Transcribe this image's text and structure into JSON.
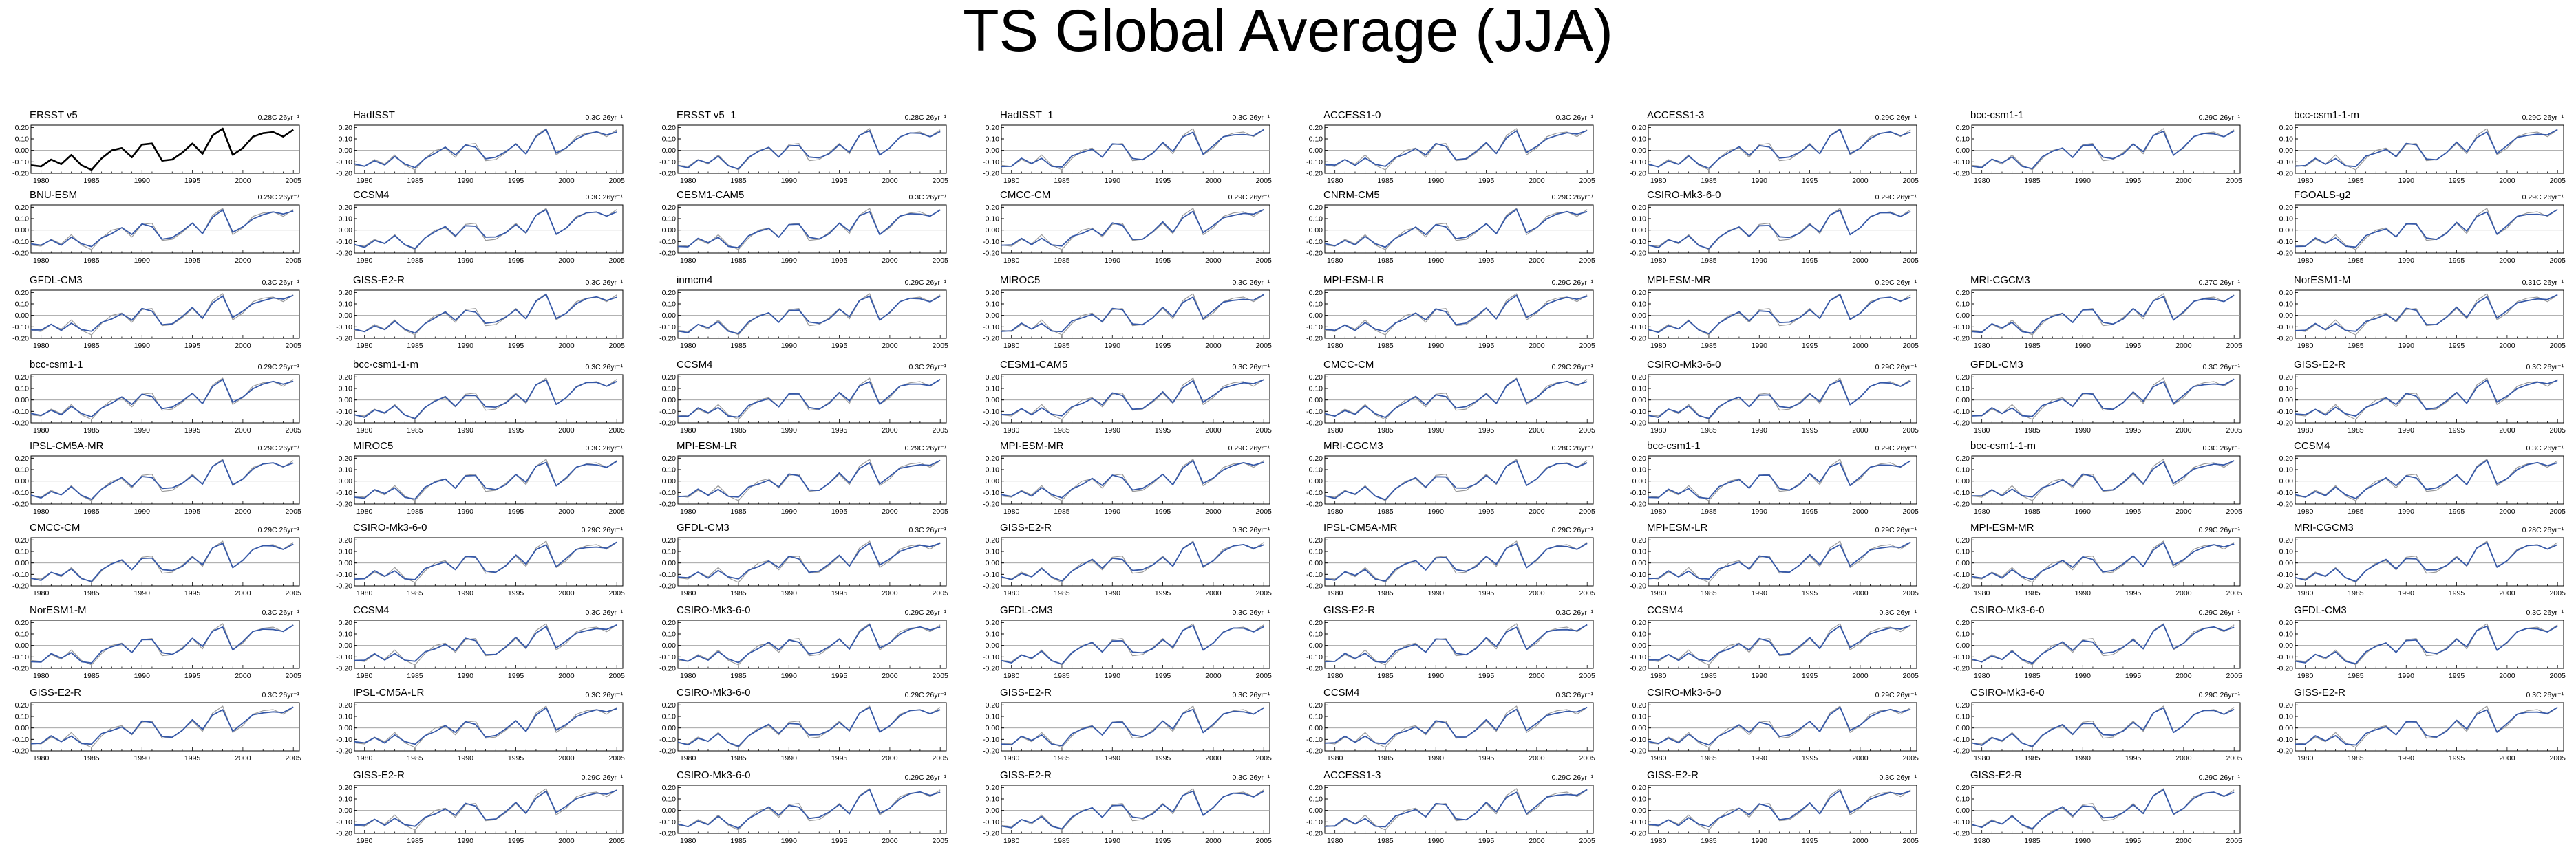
{
  "title": "TS Global Average (JJA)",
  "colors": {
    "obs_line": "#000000",
    "model_line": "#3558a8",
    "obs_ref_line": "#9a9a9a",
    "zero_line": "#999999"
  },
  "chart_data": {
    "type": "line",
    "layout": "small-multiples grid of 8 columns x 9 rows",
    "x": [
      1979,
      1980,
      1981,
      1982,
      1983,
      1984,
      1985,
      1986,
      1987,
      1988,
      1989,
      1990,
      1991,
      1992,
      1993,
      1994,
      1995,
      1996,
      1997,
      1998,
      1999,
      2000,
      2001,
      2002,
      2003,
      2004,
      2005
    ],
    "xlim": [
      1979,
      2005.6
    ],
    "ylim": [
      -0.2,
      0.22
    ],
    "xticks": [
      "1980",
      "1985",
      "1990",
      "1995",
      "2000",
      "2005"
    ],
    "yticks": [
      "0.20",
      "0.10",
      "0.00",
      "-0.10",
      "-0.20"
    ],
    "reference_obs": [
      -0.13,
      -0.14,
      -0.08,
      -0.12,
      -0.04,
      -0.13,
      -0.17,
      -0.07,
      0.0,
      0.02,
      -0.06,
      0.05,
      0.06,
      -0.09,
      -0.08,
      -0.02,
      0.06,
      -0.03,
      0.13,
      0.19,
      -0.04,
      0.02,
      0.12,
      0.15,
      0.16,
      0.12,
      0.18
    ],
    "model_series": [
      -0.13,
      -0.14,
      -0.08,
      -0.12,
      -0.06,
      -0.13,
      -0.15,
      -0.06,
      -0.02,
      0.02,
      -0.05,
      0.05,
      0.04,
      -0.07,
      -0.07,
      -0.02,
      0.06,
      -0.02,
      0.12,
      0.17,
      -0.03,
      0.03,
      0.11,
      0.14,
      0.15,
      0.13,
      0.17
    ],
    "panels": [
      {
        "row": 0,
        "col": 0,
        "title": "ERSST v5",
        "trend": "0.28C 26yr⁻¹",
        "obs": true
      },
      {
        "row": 0,
        "col": 1,
        "title": "HadISST",
        "trend": "0.3C 26yr⁻¹"
      },
      {
        "row": 0,
        "col": 2,
        "title": "ERSST v5_1",
        "trend": "0.28C 26yr⁻¹"
      },
      {
        "row": 0,
        "col": 3,
        "title": "HadISST_1",
        "trend": "0.3C 26yr⁻¹"
      },
      {
        "row": 0,
        "col": 4,
        "title": "ACCESS1-0",
        "trend": "0.3C 26yr⁻¹"
      },
      {
        "row": 0,
        "col": 5,
        "title": "ACCESS1-3",
        "trend": "0.29C 26yr⁻¹"
      },
      {
        "row": 0,
        "col": 6,
        "title": "bcc-csm1-1",
        "trend": "0.29C 26yr⁻¹"
      },
      {
        "row": 0,
        "col": 7,
        "title": "bcc-csm1-1-m",
        "trend": "0.29C 26yr⁻¹"
      },
      {
        "row": 1,
        "col": 0,
        "title": "BNU-ESM",
        "trend": "0.29C 26yr⁻¹"
      },
      {
        "row": 1,
        "col": 1,
        "title": "CCSM4",
        "trend": "0.3C 26yr⁻¹"
      },
      {
        "row": 1,
        "col": 2,
        "title": "CESM1-CAM5",
        "trend": "0.3C 26yr⁻¹"
      },
      {
        "row": 1,
        "col": 3,
        "title": "CMCC-CM",
        "trend": "0.29C 26yr⁻¹"
      },
      {
        "row": 1,
        "col": 4,
        "title": "CNRM-CM5",
        "trend": "0.29C 26yr⁻¹"
      },
      {
        "row": 1,
        "col": 5,
        "title": "CSIRO-Mk3-6-0",
        "trend": "0.29C 26yr⁻¹"
      },
      {
        "row": 1,
        "col": 7,
        "title": "FGOALS-g2",
        "trend": "0.29C 26yr⁻¹"
      },
      {
        "row": 2,
        "col": 0,
        "title": "GFDL-CM3",
        "trend": "0.3C 26yr⁻¹"
      },
      {
        "row": 2,
        "col": 1,
        "title": "GISS-E2-R",
        "trend": "0.3C 26yr⁻¹"
      },
      {
        "row": 2,
        "col": 2,
        "title": "inmcm4",
        "trend": "0.29C 26yr⁻¹"
      },
      {
        "row": 2,
        "col": 3,
        "title": "MIROC5",
        "trend": "0.3C 26yr⁻¹"
      },
      {
        "row": 2,
        "col": 4,
        "title": "MPI-ESM-LR",
        "trend": "0.29C 26yr⁻¹"
      },
      {
        "row": 2,
        "col": 5,
        "title": "MPI-ESM-MR",
        "trend": "0.29C 26yr⁻¹"
      },
      {
        "row": 2,
        "col": 6,
        "title": "MRI-CGCM3",
        "trend": "0.27C 26yr⁻¹"
      },
      {
        "row": 2,
        "col": 7,
        "title": "NorESM1-M",
        "trend": "0.31C 26yr⁻¹"
      },
      {
        "row": 3,
        "col": 0,
        "title": "bcc-csm1-1",
        "trend": "0.29C 26yr⁻¹"
      },
      {
        "row": 3,
        "col": 1,
        "title": "bcc-csm1-1-m",
        "trend": "0.3C 26yr⁻¹"
      },
      {
        "row": 3,
        "col": 2,
        "title": "CCSM4",
        "trend": "0.3C 26yr⁻¹"
      },
      {
        "row": 3,
        "col": 3,
        "title": "CESM1-CAM5",
        "trend": "0.3C 26yr⁻¹"
      },
      {
        "row": 3,
        "col": 4,
        "title": "CMCC-CM",
        "trend": "0.29C 26yr⁻¹"
      },
      {
        "row": 3,
        "col": 5,
        "title": "CSIRO-Mk3-6-0",
        "trend": "0.29C 26yr⁻¹"
      },
      {
        "row": 3,
        "col": 6,
        "title": "GFDL-CM3",
        "trend": "0.3C 26yr⁻¹"
      },
      {
        "row": 3,
        "col": 7,
        "title": "GISS-E2-R",
        "trend": "0.3C 26yr⁻¹"
      },
      {
        "row": 4,
        "col": 0,
        "title": "IPSL-CM5A-MR",
        "trend": "0.29C 26yr⁻¹"
      },
      {
        "row": 4,
        "col": 1,
        "title": "MIROC5",
        "trend": "0.3C 26yr⁻¹"
      },
      {
        "row": 4,
        "col": 2,
        "title": "MPI-ESM-LR",
        "trend": "0.29C 26yr⁻¹"
      },
      {
        "row": 4,
        "col": 3,
        "title": "MPI-ESM-MR",
        "trend": "0.29C 26yr⁻¹"
      },
      {
        "row": 4,
        "col": 4,
        "title": "MRI-CGCM3",
        "trend": "0.28C 26yr⁻¹"
      },
      {
        "row": 4,
        "col": 5,
        "title": "bcc-csm1-1",
        "trend": "0.29C 26yr⁻¹"
      },
      {
        "row": 4,
        "col": 6,
        "title": "bcc-csm1-1-m",
        "trend": "0.3C 26yr⁻¹"
      },
      {
        "row": 4,
        "col": 7,
        "title": "CCSM4",
        "trend": "0.3C 26yr⁻¹"
      },
      {
        "row": 5,
        "col": 0,
        "title": "CMCC-CM",
        "trend": "0.29C 26yr⁻¹"
      },
      {
        "row": 5,
        "col": 1,
        "title": "CSIRO-Mk3-6-0",
        "trend": "0.29C 26yr⁻¹"
      },
      {
        "row": 5,
        "col": 2,
        "title": "GFDL-CM3",
        "trend": "0.3C 26yr⁻¹"
      },
      {
        "row": 5,
        "col": 3,
        "title": "GISS-E2-R",
        "trend": "0.3C 26yr⁻¹"
      },
      {
        "row": 5,
        "col": 4,
        "title": "IPSL-CM5A-MR",
        "trend": "0.29C 26yr⁻¹"
      },
      {
        "row": 5,
        "col": 5,
        "title": "MPI-ESM-LR",
        "trend": "0.29C 26yr⁻¹"
      },
      {
        "row": 5,
        "col": 6,
        "title": "MPI-ESM-MR",
        "trend": "0.29C 26yr⁻¹"
      },
      {
        "row": 5,
        "col": 7,
        "title": "MRI-CGCM3",
        "trend": "0.28C 26yr⁻¹"
      },
      {
        "row": 6,
        "col": 0,
        "title": "NorESM1-M",
        "trend": "0.3C 26yr⁻¹"
      },
      {
        "row": 6,
        "col": 1,
        "title": "CCSM4",
        "trend": "0.3C 26yr⁻¹"
      },
      {
        "row": 6,
        "col": 2,
        "title": "CSIRO-Mk3-6-0",
        "trend": "0.29C 26yr⁻¹"
      },
      {
        "row": 6,
        "col": 3,
        "title": "GFDL-CM3",
        "trend": "0.3C 26yr⁻¹"
      },
      {
        "row": 6,
        "col": 4,
        "title": "GISS-E2-R",
        "trend": "0.3C 26yr⁻¹"
      },
      {
        "row": 6,
        "col": 5,
        "title": "CCSM4",
        "trend": "0.3C 26yr⁻¹"
      },
      {
        "row": 6,
        "col": 6,
        "title": "CSIRO-Mk3-6-0",
        "trend": "0.29C 26yr⁻¹"
      },
      {
        "row": 6,
        "col": 7,
        "title": "GFDL-CM3",
        "trend": "0.3C 26yr⁻¹"
      },
      {
        "row": 7,
        "col": 0,
        "title": "GISS-E2-R",
        "trend": "0.3C 26yr⁻¹"
      },
      {
        "row": 7,
        "col": 1,
        "title": "IPSL-CM5A-LR",
        "trend": "0.3C 26yr⁻¹"
      },
      {
        "row": 7,
        "col": 2,
        "title": "CSIRO-Mk3-6-0",
        "trend": "0.29C 26yr⁻¹"
      },
      {
        "row": 7,
        "col": 3,
        "title": "GISS-E2-R",
        "trend": "0.3C 26yr⁻¹"
      },
      {
        "row": 7,
        "col": 4,
        "title": "CCSM4",
        "trend": "0.3C 26yr⁻¹"
      },
      {
        "row": 7,
        "col": 5,
        "title": "CSIRO-Mk3-6-0",
        "trend": "0.29C 26yr⁻¹"
      },
      {
        "row": 7,
        "col": 6,
        "title": "CSIRO-Mk3-6-0",
        "trend": "0.29C 26yr⁻¹"
      },
      {
        "row": 7,
        "col": 7,
        "title": "GISS-E2-R",
        "trend": "0.3C 26yr⁻¹"
      },
      {
        "row": 8,
        "col": 1,
        "title": "GISS-E2-R",
        "trend": "0.29C 26yr⁻¹"
      },
      {
        "row": 8,
        "col": 2,
        "title": "CSIRO-Mk3-6-0",
        "trend": "0.29C 26yr⁻¹"
      },
      {
        "row": 8,
        "col": 3,
        "title": "GISS-E2-R",
        "trend": "0.3C 26yr⁻¹"
      },
      {
        "row": 8,
        "col": 4,
        "title": "ACCESS1-3",
        "trend": "0.29C 26yr⁻¹"
      },
      {
        "row": 8,
        "col": 5,
        "title": "GISS-E2-R",
        "trend": "0.3C 26yr⁻¹"
      },
      {
        "row": 8,
        "col": 6,
        "title": "GISS-E2-R",
        "trend": "0.29C 26yr⁻¹"
      }
    ]
  }
}
